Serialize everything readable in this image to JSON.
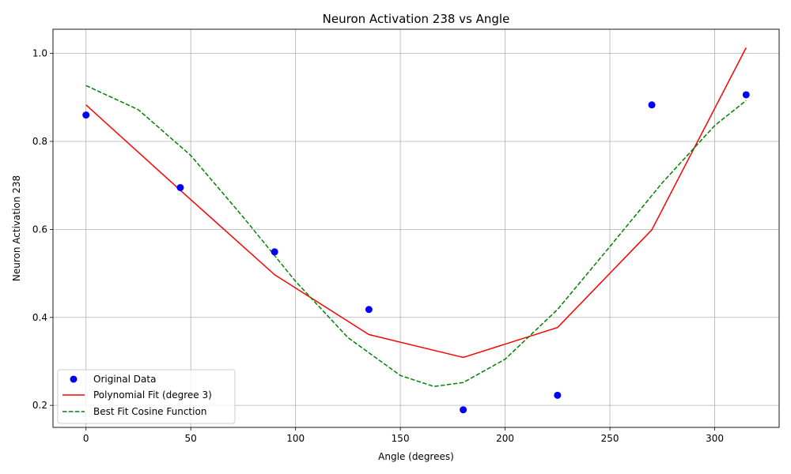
{
  "chart_data": {
    "type": "scatter",
    "title": "Neuron Activation 238 vs Angle",
    "xlabel": "Angle (degrees)",
    "ylabel": "Neuron Activation 238",
    "xlim": [
      -15.75,
      330.75
    ],
    "ylim": [
      0.15,
      1.055
    ],
    "x_ticks": [
      0,
      50,
      100,
      150,
      200,
      250,
      300
    ],
    "x_tick_labels": [
      "0",
      "50",
      "100",
      "150",
      "200",
      "250",
      "300"
    ],
    "y_ticks": [
      0.2,
      0.4,
      0.6,
      0.8,
      1.0
    ],
    "y_tick_labels": [
      "0.2",
      "0.4",
      "0.6",
      "0.8",
      "1.0"
    ],
    "grid": true,
    "legend_position": "lower-left",
    "series": [
      {
        "name": "Original Data",
        "kind": "scatter",
        "color": "#0000ff",
        "x": [
          0,
          45,
          90,
          135,
          180,
          225,
          270,
          315
        ],
        "y": [
          0.86,
          0.695,
          0.549,
          0.418,
          0.19,
          0.223,
          0.883,
          0.906
        ]
      },
      {
        "name": "Polynomial Fit (degree 3)",
        "kind": "line",
        "color": "#ff0000",
        "x": [
          0,
          45,
          90,
          135,
          180,
          225,
          270,
          315
        ],
        "y": [
          0.883,
          0.689,
          0.497,
          0.361,
          0.309,
          0.377,
          0.599,
          1.013
        ]
      },
      {
        "name": "Best Fit Cosine Function",
        "kind": "line",
        "style": "dashed",
        "color": "#008000",
        "x": [
          0,
          25,
          50,
          75,
          100,
          125,
          150,
          166,
          180,
          200,
          225,
          250,
          275,
          300,
          315
        ],
        "y": [
          0.927,
          0.872,
          0.768,
          0.628,
          0.482,
          0.354,
          0.268,
          0.243,
          0.252,
          0.305,
          0.418,
          0.561,
          0.706,
          0.836,
          0.893
        ]
      }
    ]
  }
}
